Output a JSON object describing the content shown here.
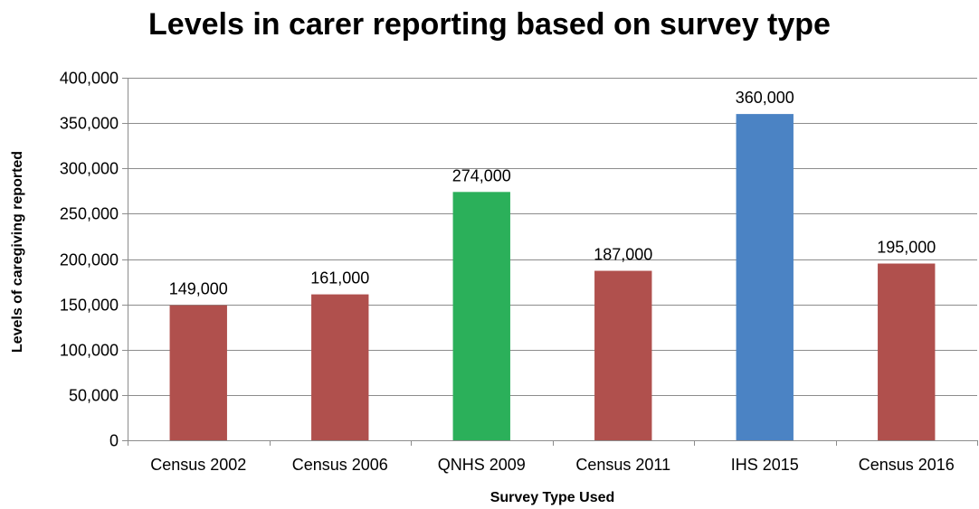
{
  "chart_data": {
    "type": "bar",
    "title": "Levels in carer reporting based on survey type",
    "xlabel": "Survey Type Used",
    "ylabel": "Levels of caregiving reported",
    "categories": [
      "Census 2002",
      "Census 2006",
      "QNHS 2009",
      "Census 2011",
      "IHS 2015",
      "Census 2016"
    ],
    "values": [
      149000,
      161000,
      274000,
      187000,
      360000,
      195000
    ],
    "value_labels": [
      "149,000",
      "161,000",
      "274,000",
      "187,000",
      "360,000",
      "195,000"
    ],
    "bar_colors": [
      "#b0504d",
      "#b0504d",
      "#2bb05a",
      "#b0504d",
      "#4b83c4",
      "#b0504d"
    ],
    "ylim": [
      0,
      400000
    ],
    "yticks": [
      0,
      50000,
      100000,
      150000,
      200000,
      250000,
      300000,
      350000,
      400000
    ],
    "ytick_labels": [
      "0",
      "50,000",
      "100,000",
      "150,000",
      "200,000",
      "250,000",
      "300,000",
      "350,000",
      "400,000"
    ],
    "grid": true,
    "legend": "none"
  },
  "colors": {
    "grid": "#8c8c8c",
    "axis": "#8c8c8c",
    "text": "#000000"
  }
}
